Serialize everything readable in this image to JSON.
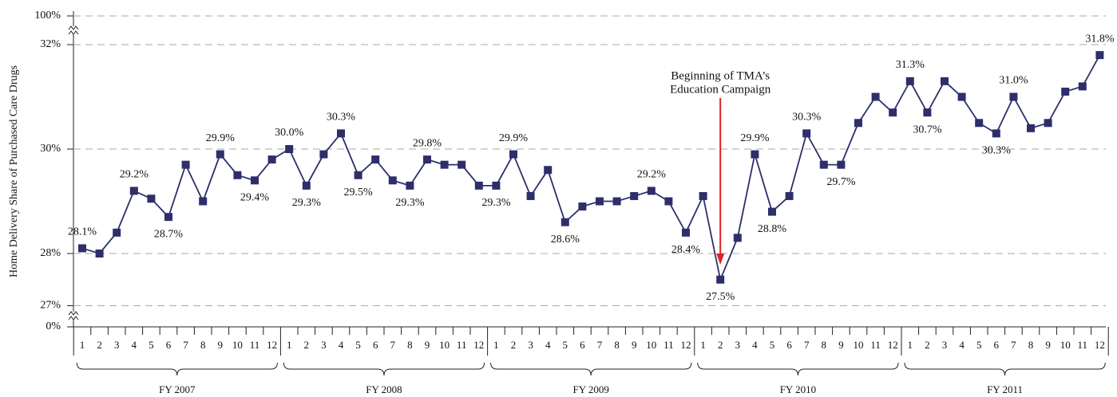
{
  "chart_data": {
    "type": "line",
    "y_axis_label": "Home Delivery Share of Purchased Care Drugs",
    "categories": [
      "1",
      "2",
      "3",
      "4",
      "5",
      "6",
      "7",
      "8",
      "9",
      "10",
      "11",
      "12",
      "1",
      "2",
      "3",
      "4",
      "5",
      "6",
      "7",
      "8",
      "9",
      "10",
      "11",
      "12",
      "1",
      "2",
      "3",
      "4",
      "5",
      "6",
      "7",
      "8",
      "9",
      "10",
      "11",
      "12",
      "1",
      "2",
      "3",
      "4",
      "5",
      "6",
      "7",
      "8",
      "9",
      "10",
      "11",
      "12",
      "1",
      "2",
      "3",
      "4",
      "5",
      "6",
      "7",
      "8",
      "9",
      "10",
      "11",
      "12"
    ],
    "groups": [
      "FY 2007",
      "FY 2008",
      "FY 2009",
      "FY 2010",
      "FY 2011"
    ],
    "color": "#2e2e6b",
    "values": [
      28.1,
      28.0,
      28.4,
      29.2,
      29.05,
      28.7,
      29.7,
      29.0,
      29.9,
      29.5,
      29.4,
      29.8,
      30.0,
      29.3,
      29.9,
      30.3,
      29.5,
      29.8,
      29.4,
      29.3,
      29.8,
      29.7,
      29.7,
      29.3,
      29.3,
      29.9,
      29.1,
      29.6,
      28.6,
      28.9,
      29.0,
      29.0,
      29.1,
      29.2,
      29.0,
      28.4,
      29.1,
      27.5,
      28.3,
      29.9,
      28.8,
      29.1,
      30.3,
      29.7,
      29.7,
      30.5,
      31.0,
      30.7,
      31.3,
      30.7,
      31.3,
      31.0,
      30.5,
      30.3,
      31.0,
      30.4,
      30.5,
      31.1,
      31.2,
      31.8
    ],
    "value_labels": [
      "28.1%",
      null,
      null,
      "29.2%",
      null,
      "28.7%",
      null,
      null,
      "29.9%",
      null,
      "29.4%",
      null,
      "30.0%",
      "29.3%",
      null,
      "30.3%",
      "29.5%",
      null,
      null,
      "29.3%",
      "29.8%",
      null,
      null,
      null,
      "29.3%",
      "29.9%",
      null,
      null,
      "28.6%",
      null,
      null,
      null,
      null,
      "29.2%",
      null,
      "28.4%",
      null,
      "27.5%",
      null,
      "29.9%",
      "28.8%",
      null,
      "30.3%",
      null,
      "29.7%",
      null,
      null,
      null,
      "31.3%",
      "30.7%",
      null,
      null,
      null,
      "30.3%",
      "31.0%",
      null,
      null,
      null,
      null,
      "31.8%"
    ],
    "ylim": [
      27,
      32
    ],
    "axis_break": true,
    "yticks": [
      {
        "value": 0,
        "label": "0%"
      },
      {
        "value": 27,
        "label": "27%"
      },
      {
        "value": 28,
        "label": "28%"
      },
      {
        "value": 30,
        "label": "30%"
      },
      {
        "value": 32,
        "label": "32%"
      },
      {
        "value": 100,
        "label": "100%"
      }
    ],
    "grid": true,
    "annotation": {
      "lines": [
        "Beginning of TMA’s",
        "Education Campaign"
      ],
      "at": 37
    }
  }
}
